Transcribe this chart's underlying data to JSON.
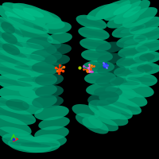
{
  "background_color": "#000000",
  "protein_color_main": "#00A878",
  "protein_color_dark": "#007055",
  "protein_color_light": "#00C890",
  "protein_color_shadow": "#005540",
  "ligand_colors_orange": [
    "#FF4500",
    "#FF6600",
    "#DD3300"
  ],
  "ligand_colors_center": [
    "#FF4500",
    "#FF6600",
    "#FF8C00",
    "#FF69B4",
    "#DA70D6",
    "#CC44CC"
  ],
  "ligand_colors_blue": [
    "#4444FF",
    "#2222EE",
    "#6666FF"
  ],
  "ligand_yellow": "#AACC00",
  "axis_x_color": "#DD2222",
  "axis_y_color": "#22CC22",
  "axis_z_color": "#2222DD",
  "figsize": [
    2.0,
    2.0
  ],
  "dpi": 100
}
